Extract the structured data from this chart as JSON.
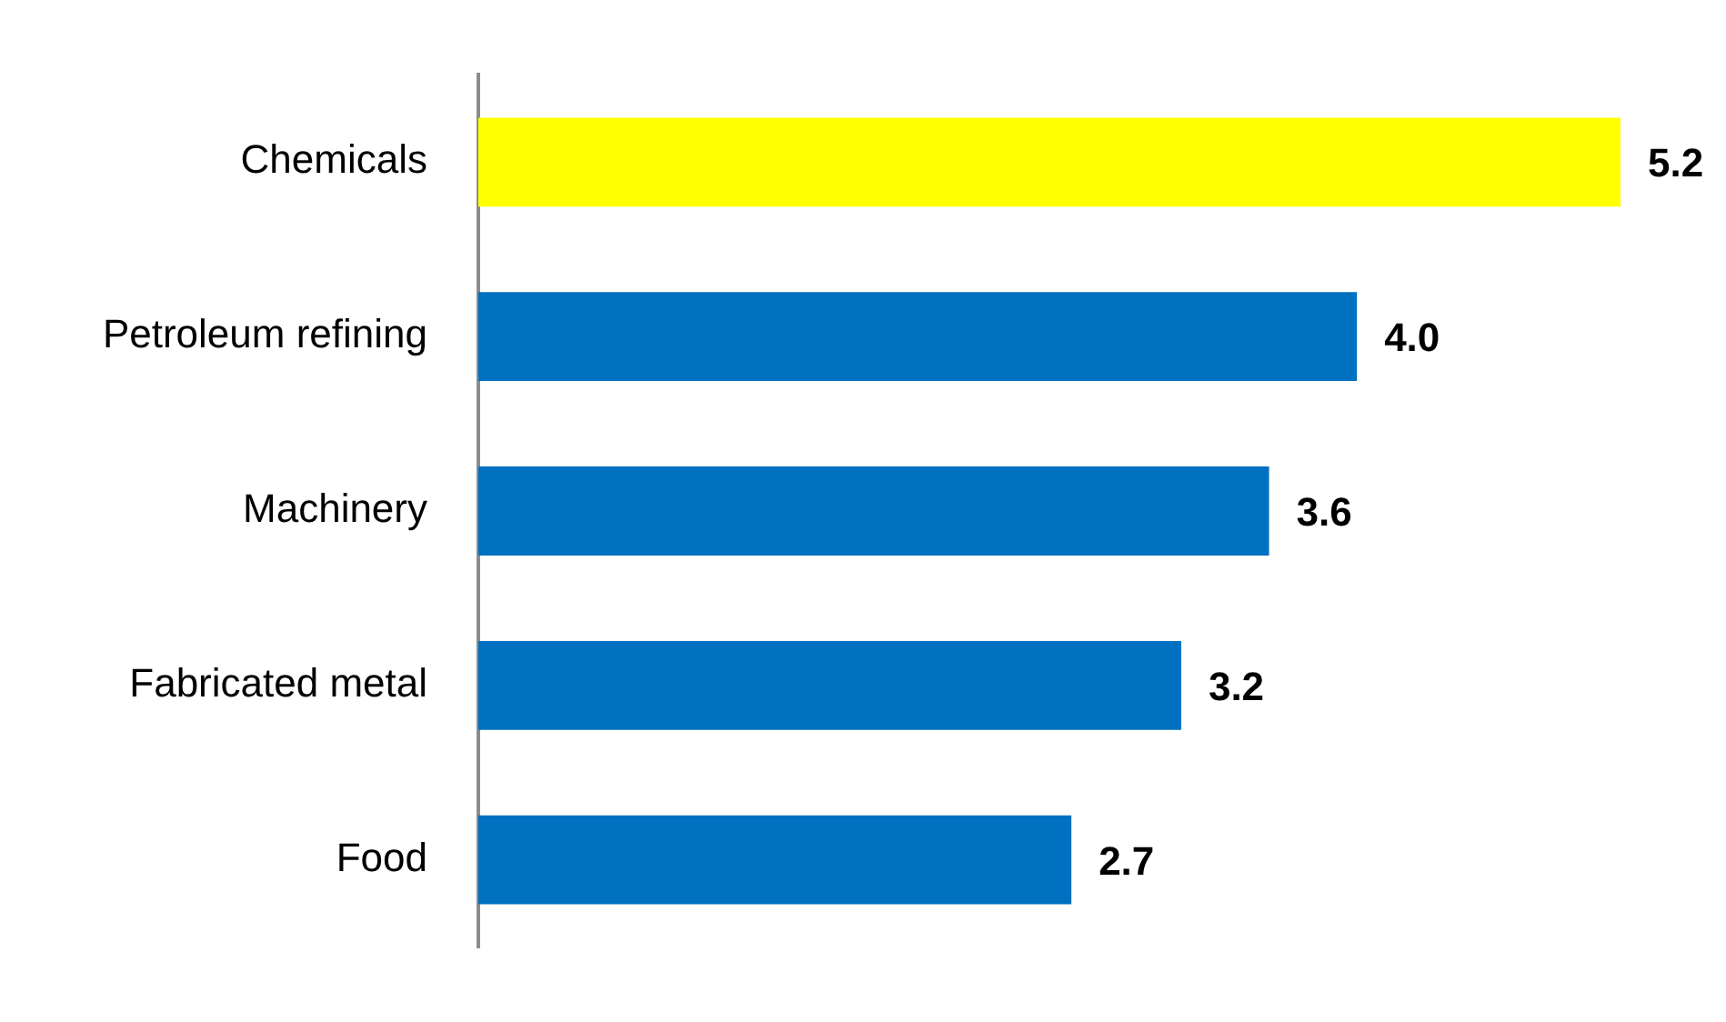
{
  "chart_data": {
    "type": "bar",
    "orientation": "horizontal",
    "categories": [
      "Chemicals",
      "Petroleum refining",
      "Machinery",
      "Fabricated metal",
      "Food"
    ],
    "values": [
      5.2,
      4.0,
      3.6,
      3.2,
      2.7
    ],
    "colors": [
      "#ffff00",
      "#0070c0",
      "#0070c0",
      "#0070c0",
      "#0070c0"
    ],
    "value_labels": [
      "5.2",
      "4.0",
      "3.6",
      "3.2",
      "2.7"
    ],
    "tick_labels": "y",
    "legend": false
  }
}
